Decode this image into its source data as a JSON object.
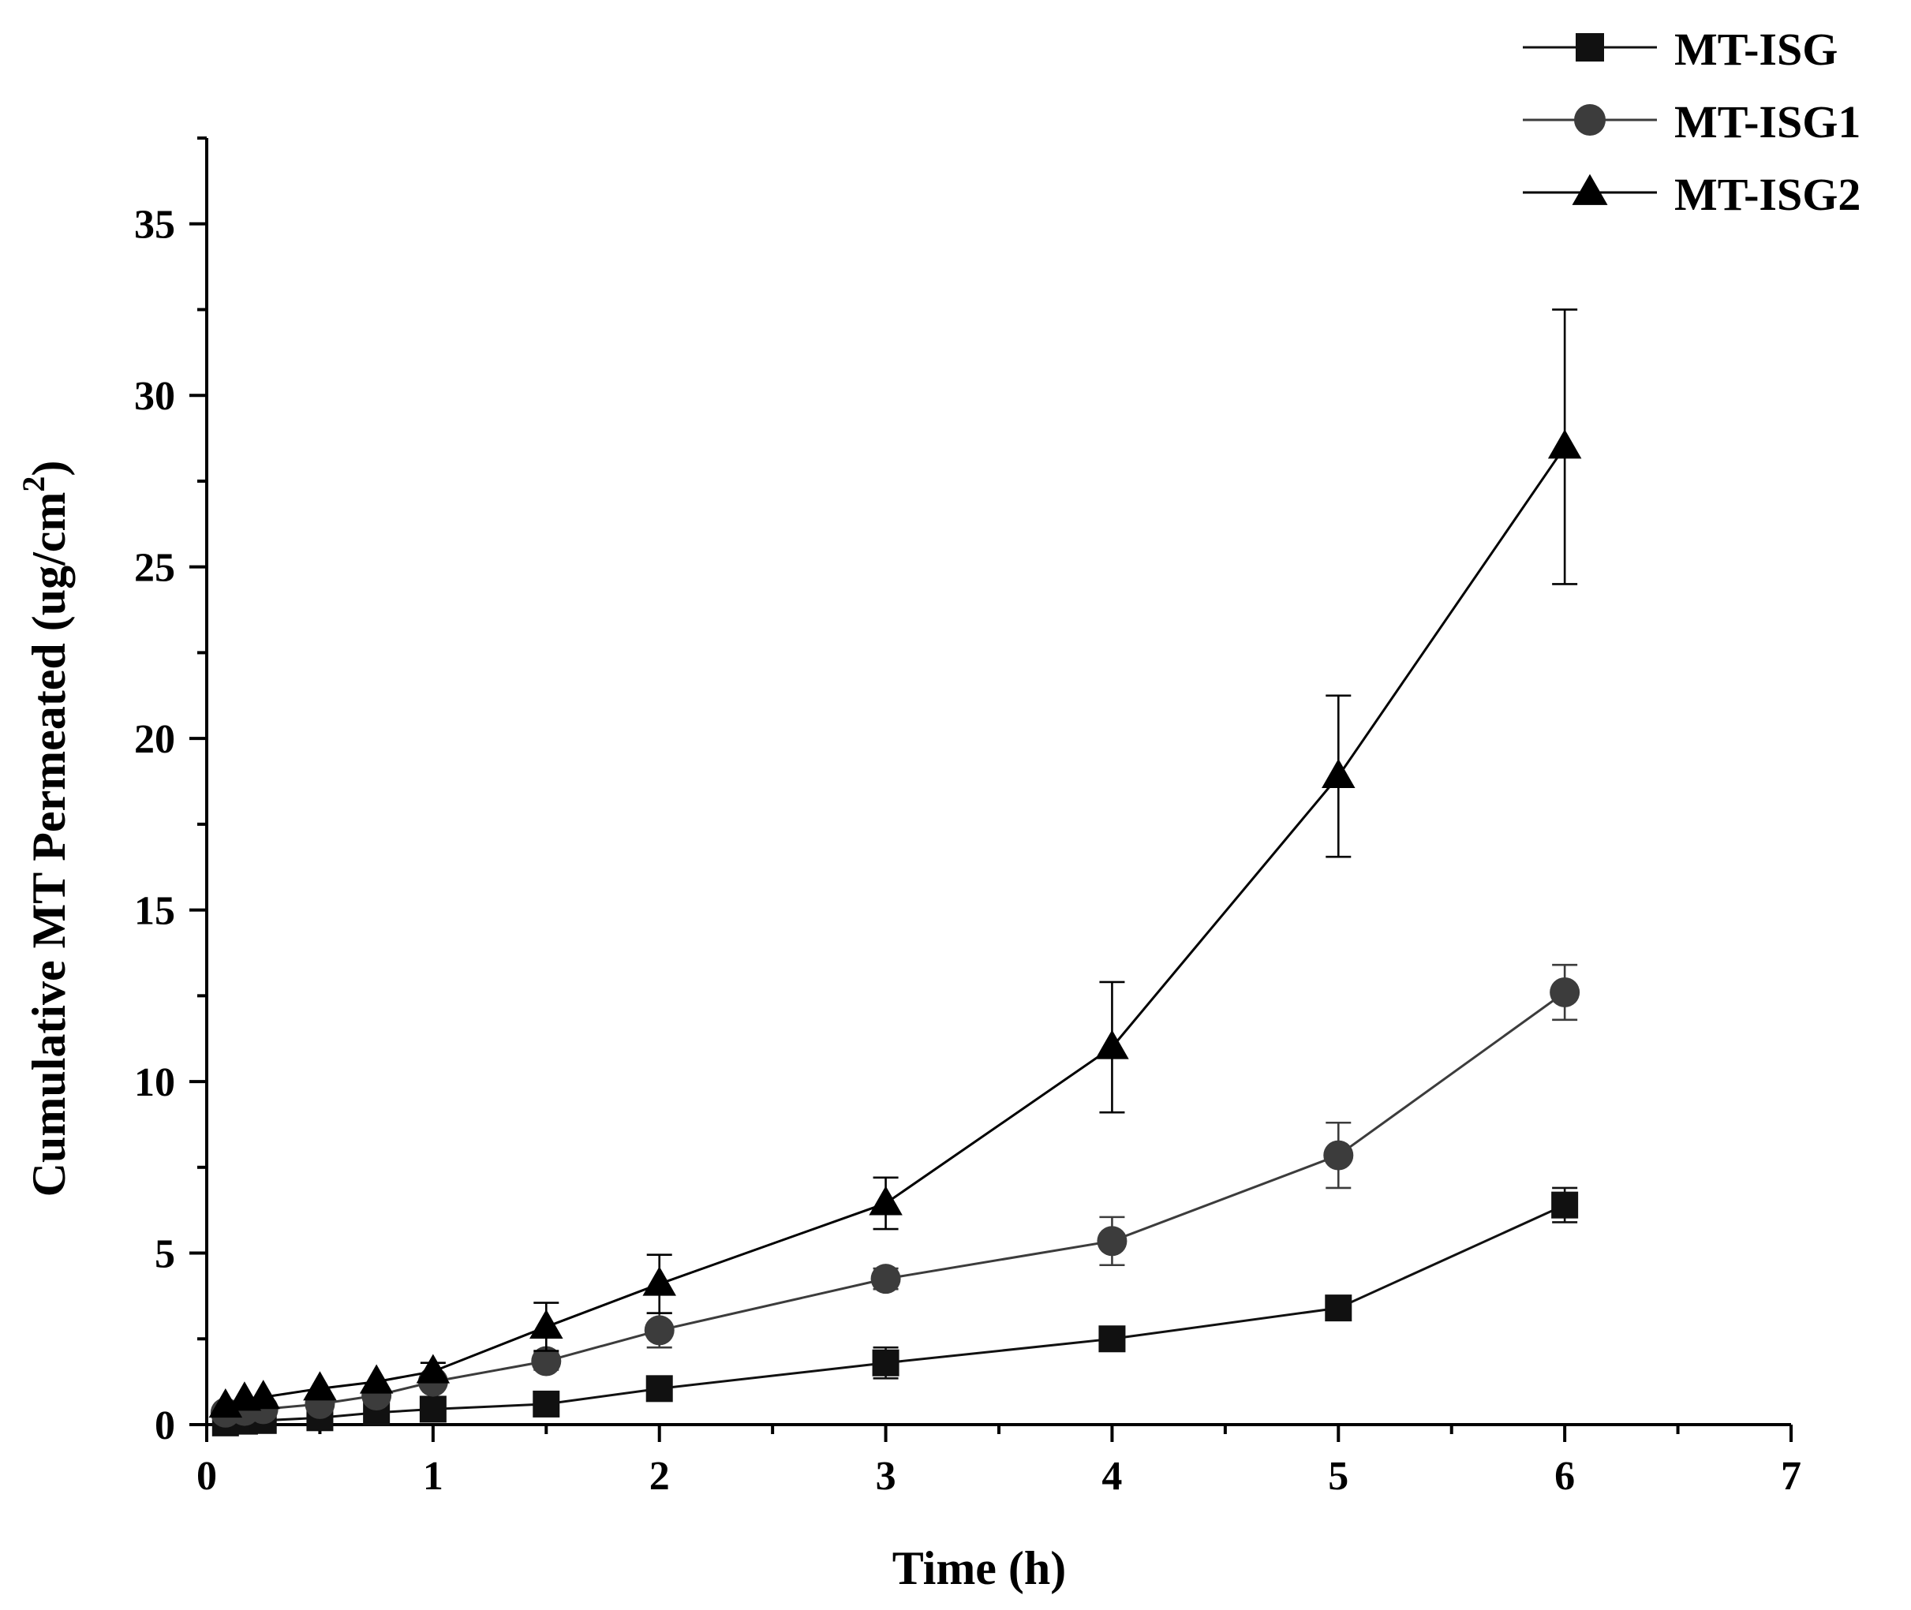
{
  "chart_data": {
    "type": "line",
    "title": "",
    "xlabel": "Time (h)",
    "ylabel": "Cumulative MT Permeated (ug/cm",
    "ylabel_superscript": "2",
    "ylabel_close": ")",
    "xlim": [
      0,
      7
    ],
    "ylim": [
      0,
      37.5
    ],
    "xticks": [
      0,
      1,
      2,
      3,
      4,
      5,
      6,
      7
    ],
    "yticks": [
      0,
      5,
      10,
      15,
      20,
      25,
      30,
      35
    ],
    "legend_position": "top-right",
    "grid": false,
    "series": [
      {
        "name": "MT-ISG",
        "marker": "square",
        "color": "#111111",
        "x": [
          0.083,
          0.167,
          0.25,
          0.5,
          0.75,
          1,
          1.5,
          2,
          3,
          4,
          5,
          6
        ],
        "y": [
          0.05,
          0.1,
          0.12,
          0.2,
          0.35,
          0.45,
          0.6,
          1.05,
          1.8,
          2.5,
          3.4,
          6.4
        ],
        "err": [
          0.05,
          0.05,
          0.05,
          0.1,
          0.1,
          0.1,
          0.15,
          0.2,
          0.45,
          0.25,
          0.25,
          0.5
        ]
      },
      {
        "name": "MT-ISG1",
        "marker": "circle",
        "color": "#3c3c3c",
        "x": [
          0.083,
          0.167,
          0.25,
          0.5,
          0.75,
          1,
          1.5,
          2,
          3,
          4,
          5,
          6
        ],
        "y": [
          0.35,
          0.4,
          0.45,
          0.6,
          0.85,
          1.25,
          1.85,
          2.75,
          4.25,
          5.35,
          7.85,
          12.6
        ],
        "err": [
          0.1,
          0.1,
          0.1,
          0.15,
          0.15,
          0.2,
          0.25,
          0.5,
          0.3,
          0.7,
          0.95,
          0.8
        ]
      },
      {
        "name": "MT-ISG2",
        "marker": "triangle",
        "color": "#000000",
        "x": [
          0.083,
          0.167,
          0.25,
          0.5,
          0.75,
          1,
          1.5,
          2,
          3,
          4,
          5,
          6
        ],
        "y": [
          0.55,
          0.75,
          0.8,
          1.05,
          1.25,
          1.55,
          2.85,
          4.1,
          6.45,
          11.0,
          18.9,
          28.5
        ],
        "err": [
          0.1,
          0.1,
          0.1,
          0.15,
          0.15,
          0.25,
          0.7,
          0.85,
          0.75,
          1.9,
          2.35,
          4.0
        ]
      }
    ]
  }
}
